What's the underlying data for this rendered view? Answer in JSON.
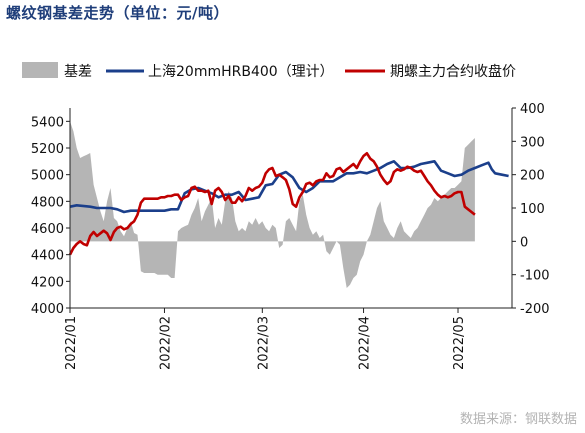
{
  "title": "螺纹钢基差走势（单位：元/吨）",
  "source": "数据来源：钢联数据",
  "colors": {
    "basis": "#b5b5b5",
    "spot": "#1b3f8b",
    "futures": "#c00000"
  },
  "chart_data": {
    "type": "line",
    "x_ticks": [
      "2022/01",
      "2022/02",
      "2022/03",
      "2022/04",
      "2022/05"
    ],
    "x_range": [
      0,
      125
    ],
    "x_tick_positions": [
      0,
      28,
      57,
      87,
      115
    ],
    "y_left": {
      "ticks": [
        4000,
        4200,
        4400,
        4600,
        4800,
        5000,
        5200,
        5400
      ],
      "range": [
        4000,
        5500
      ]
    },
    "y_right": {
      "ticks": [
        -200,
        -100,
        0,
        100,
        200,
        300,
        400
      ],
      "range": [
        -200,
        400
      ]
    },
    "legend": [
      "基差",
      "上海20mmHRB400（理计）",
      "期螺主力合约收盘价"
    ],
    "series": [
      {
        "name": "基差",
        "type": "area",
        "axis": "right",
        "points": [
          [
            0,
            360
          ],
          [
            1,
            330
          ],
          [
            2,
            280
          ],
          [
            3,
            250
          ],
          [
            4,
            255
          ],
          [
            5,
            260
          ],
          [
            6,
            265
          ],
          [
            7,
            170
          ],
          [
            8,
            130
          ],
          [
            9,
            90
          ],
          [
            10,
            60
          ],
          [
            11,
            120
          ],
          [
            12,
            160
          ],
          [
            13,
            70
          ],
          [
            14,
            60
          ],
          [
            15,
            30
          ],
          [
            16,
            15
          ],
          [
            17,
            40
          ],
          [
            18,
            60
          ],
          [
            19,
            25
          ],
          [
            20,
            20
          ],
          [
            21,
            -90
          ],
          [
            22,
            -95
          ],
          [
            23,
            -95
          ],
          [
            24,
            -95
          ],
          [
            25,
            -95
          ],
          [
            26,
            -100
          ],
          [
            27,
            -100
          ],
          [
            28,
            -100
          ],
          [
            29,
            -100
          ],
          [
            30,
            -110
          ],
          [
            31,
            -110
          ],
          [
            32,
            30
          ],
          [
            33,
            40
          ],
          [
            34,
            45
          ],
          [
            35,
            50
          ],
          [
            36,
            80
          ],
          [
            37,
            100
          ],
          [
            38,
            130
          ],
          [
            39,
            60
          ],
          [
            40,
            90
          ],
          [
            41,
            110
          ],
          [
            42,
            130
          ],
          [
            43,
            40
          ],
          [
            44,
            70
          ],
          [
            45,
            50
          ],
          [
            46,
            120
          ],
          [
            47,
            150
          ],
          [
            48,
            130
          ],
          [
            49,
            60
          ],
          [
            50,
            30
          ],
          [
            51,
            40
          ],
          [
            52,
            30
          ],
          [
            53,
            60
          ],
          [
            54,
            50
          ],
          [
            55,
            70
          ],
          [
            56,
            50
          ],
          [
            57,
            60
          ],
          [
            58,
            40
          ],
          [
            59,
            30
          ],
          [
            60,
            50
          ],
          [
            61,
            40
          ],
          [
            62,
            -20
          ],
          [
            63,
            -10
          ],
          [
            64,
            60
          ],
          [
            65,
            70
          ],
          [
            66,
            50
          ],
          [
            67,
            30
          ],
          [
            68,
            120
          ],
          [
            69,
            140
          ],
          [
            70,
            80
          ],
          [
            71,
            40
          ],
          [
            72,
            20
          ],
          [
            73,
            30
          ],
          [
            74,
            10
          ],
          [
            75,
            20
          ],
          [
            76,
            -30
          ],
          [
            77,
            -40
          ],
          [
            78,
            -20
          ],
          [
            79,
            0
          ],
          [
            80,
            -10
          ],
          [
            81,
            -80
          ],
          [
            82,
            -140
          ],
          [
            83,
            -130
          ],
          [
            84,
            -110
          ],
          [
            85,
            -100
          ],
          [
            86,
            -60
          ],
          [
            87,
            -40
          ],
          [
            88,
            0
          ],
          [
            89,
            20
          ],
          [
            90,
            60
          ],
          [
            91,
            100
          ],
          [
            92,
            120
          ],
          [
            93,
            60
          ],
          [
            94,
            40
          ],
          [
            95,
            20
          ],
          [
            96,
            10
          ],
          [
            97,
            40
          ],
          [
            98,
            60
          ],
          [
            99,
            30
          ],
          [
            100,
            20
          ],
          [
            101,
            10
          ],
          [
            102,
            30
          ],
          [
            103,
            40
          ],
          [
            104,
            60
          ],
          [
            105,
            80
          ],
          [
            106,
            100
          ],
          [
            107,
            110
          ],
          [
            108,
            130
          ],
          [
            109,
            120
          ],
          [
            110,
            130
          ],
          [
            111,
            140
          ],
          [
            112,
            150
          ],
          [
            113,
            160
          ],
          [
            114,
            160
          ],
          [
            115,
            170
          ],
          [
            116,
            180
          ],
          [
            117,
            280
          ],
          [
            118,
            290
          ],
          [
            119,
            300
          ],
          [
            120,
            310
          ]
        ]
      },
      {
        "name": "上海20mmHRB400（理计）",
        "type": "line",
        "axis": "left",
        "points": [
          [
            0,
            4760
          ],
          [
            2,
            4770
          ],
          [
            6,
            4760
          ],
          [
            8,
            4750
          ],
          [
            12,
            4750
          ],
          [
            14,
            4740
          ],
          [
            16,
            4720
          ],
          [
            18,
            4730
          ],
          [
            20,
            4730
          ],
          [
            24,
            4730
          ],
          [
            28,
            4730
          ],
          [
            30,
            4740
          ],
          [
            32,
            4740
          ],
          [
            34,
            4860
          ],
          [
            36,
            4890
          ],
          [
            38,
            4900
          ],
          [
            40,
            4880
          ],
          [
            42,
            4860
          ],
          [
            44,
            4830
          ],
          [
            46,
            4850
          ],
          [
            48,
            4850
          ],
          [
            50,
            4870
          ],
          [
            52,
            4810
          ],
          [
            54,
            4820
          ],
          [
            56,
            4830
          ],
          [
            58,
            4920
          ],
          [
            60,
            4930
          ],
          [
            62,
            5000
          ],
          [
            64,
            5020
          ],
          [
            66,
            4980
          ],
          [
            68,
            4900
          ],
          [
            70,
            4870
          ],
          [
            72,
            4900
          ],
          [
            74,
            4950
          ],
          [
            76,
            4950
          ],
          [
            78,
            4950
          ],
          [
            80,
            4980
          ],
          [
            82,
            5010
          ],
          [
            84,
            5010
          ],
          [
            86,
            5020
          ],
          [
            88,
            5010
          ],
          [
            90,
            5030
          ],
          [
            92,
            5050
          ],
          [
            94,
            5080
          ],
          [
            96,
            5100
          ],
          [
            98,
            5050
          ],
          [
            100,
            5050
          ],
          [
            102,
            5060
          ],
          [
            104,
            5080
          ],
          [
            106,
            5090
          ],
          [
            108,
            5100
          ],
          [
            110,
            5030
          ],
          [
            112,
            5010
          ],
          [
            114,
            4990
          ],
          [
            116,
            5000
          ],
          [
            118,
            5030
          ],
          [
            120,
            5050
          ],
          [
            122,
            5070
          ],
          [
            124,
            5090
          ],
          [
            125,
            5040
          ],
          [
            126,
            5010
          ],
          [
            128,
            5000
          ],
          [
            130,
            4990
          ]
        ]
      },
      {
        "name": "期螺主力合约收盘价",
        "type": "line",
        "axis": "left",
        "points": [
          [
            0,
            4400
          ],
          [
            1,
            4450
          ],
          [
            2,
            4480
          ],
          [
            3,
            4500
          ],
          [
            4,
            4480
          ],
          [
            5,
            4470
          ],
          [
            6,
            4540
          ],
          [
            7,
            4570
          ],
          [
            8,
            4540
          ],
          [
            9,
            4560
          ],
          [
            10,
            4580
          ],
          [
            11,
            4560
          ],
          [
            12,
            4510
          ],
          [
            13,
            4570
          ],
          [
            14,
            4600
          ],
          [
            15,
            4610
          ],
          [
            16,
            4590
          ],
          [
            17,
            4600
          ],
          [
            18,
            4630
          ],
          [
            19,
            4650
          ],
          [
            20,
            4700
          ],
          [
            21,
            4790
          ],
          [
            22,
            4820
          ],
          [
            23,
            4820
          ],
          [
            24,
            4820
          ],
          [
            25,
            4820
          ],
          [
            26,
            4820
          ],
          [
            27,
            4830
          ],
          [
            28,
            4830
          ],
          [
            29,
            4840
          ],
          [
            30,
            4840
          ],
          [
            31,
            4850
          ],
          [
            32,
            4850
          ],
          [
            33,
            4810
          ],
          [
            34,
            4830
          ],
          [
            35,
            4840
          ],
          [
            36,
            4900
          ],
          [
            37,
            4910
          ],
          [
            38,
            4880
          ],
          [
            39,
            4880
          ],
          [
            40,
            4870
          ],
          [
            41,
            4880
          ],
          [
            42,
            4780
          ],
          [
            43,
            4880
          ],
          [
            44,
            4900
          ],
          [
            45,
            4870
          ],
          [
            46,
            4810
          ],
          [
            47,
            4840
          ],
          [
            48,
            4790
          ],
          [
            49,
            4790
          ],
          [
            50,
            4830
          ],
          [
            51,
            4800
          ],
          [
            52,
            4840
          ],
          [
            53,
            4900
          ],
          [
            54,
            4880
          ],
          [
            55,
            4900
          ],
          [
            56,
            4910
          ],
          [
            57,
            4940
          ],
          [
            58,
            5010
          ],
          [
            59,
            5040
          ],
          [
            60,
            5050
          ],
          [
            61,
            4990
          ],
          [
            62,
            5000
          ],
          [
            63,
            4980
          ],
          [
            64,
            4960
          ],
          [
            65,
            4890
          ],
          [
            66,
            4780
          ],
          [
            67,
            4760
          ],
          [
            68,
            4830
          ],
          [
            69,
            4870
          ],
          [
            70,
            4930
          ],
          [
            71,
            4940
          ],
          [
            72,
            4920
          ],
          [
            73,
            4950
          ],
          [
            74,
            4960
          ],
          [
            75,
            4960
          ],
          [
            76,
            5010
          ],
          [
            77,
            4980
          ],
          [
            78,
            4990
          ],
          [
            79,
            5040
          ],
          [
            80,
            5050
          ],
          [
            81,
            5020
          ],
          [
            82,
            5040
          ],
          [
            83,
            5060
          ],
          [
            84,
            5080
          ],
          [
            85,
            5050
          ],
          [
            86,
            5100
          ],
          [
            87,
            5140
          ],
          [
            88,
            5160
          ],
          [
            89,
            5120
          ],
          [
            90,
            5100
          ],
          [
            91,
            5060
          ],
          [
            92,
            5000
          ],
          [
            93,
            4960
          ],
          [
            94,
            4930
          ],
          [
            95,
            4950
          ],
          [
            96,
            5020
          ],
          [
            97,
            5040
          ],
          [
            98,
            5030
          ],
          [
            99,
            5040
          ],
          [
            100,
            5060
          ],
          [
            101,
            5050
          ],
          [
            102,
            5030
          ],
          [
            103,
            5020
          ],
          [
            104,
            5030
          ],
          [
            105,
            4990
          ],
          [
            106,
            4950
          ],
          [
            107,
            4920
          ],
          [
            108,
            4880
          ],
          [
            109,
            4850
          ],
          [
            110,
            4830
          ],
          [
            111,
            4840
          ],
          [
            112,
            4830
          ],
          [
            113,
            4840
          ],
          [
            114,
            4860
          ],
          [
            115,
            4870
          ],
          [
            116,
            4870
          ],
          [
            117,
            4760
          ],
          [
            118,
            4740
          ],
          [
            119,
            4720
          ],
          [
            120,
            4700
          ]
        ]
      }
    ]
  }
}
